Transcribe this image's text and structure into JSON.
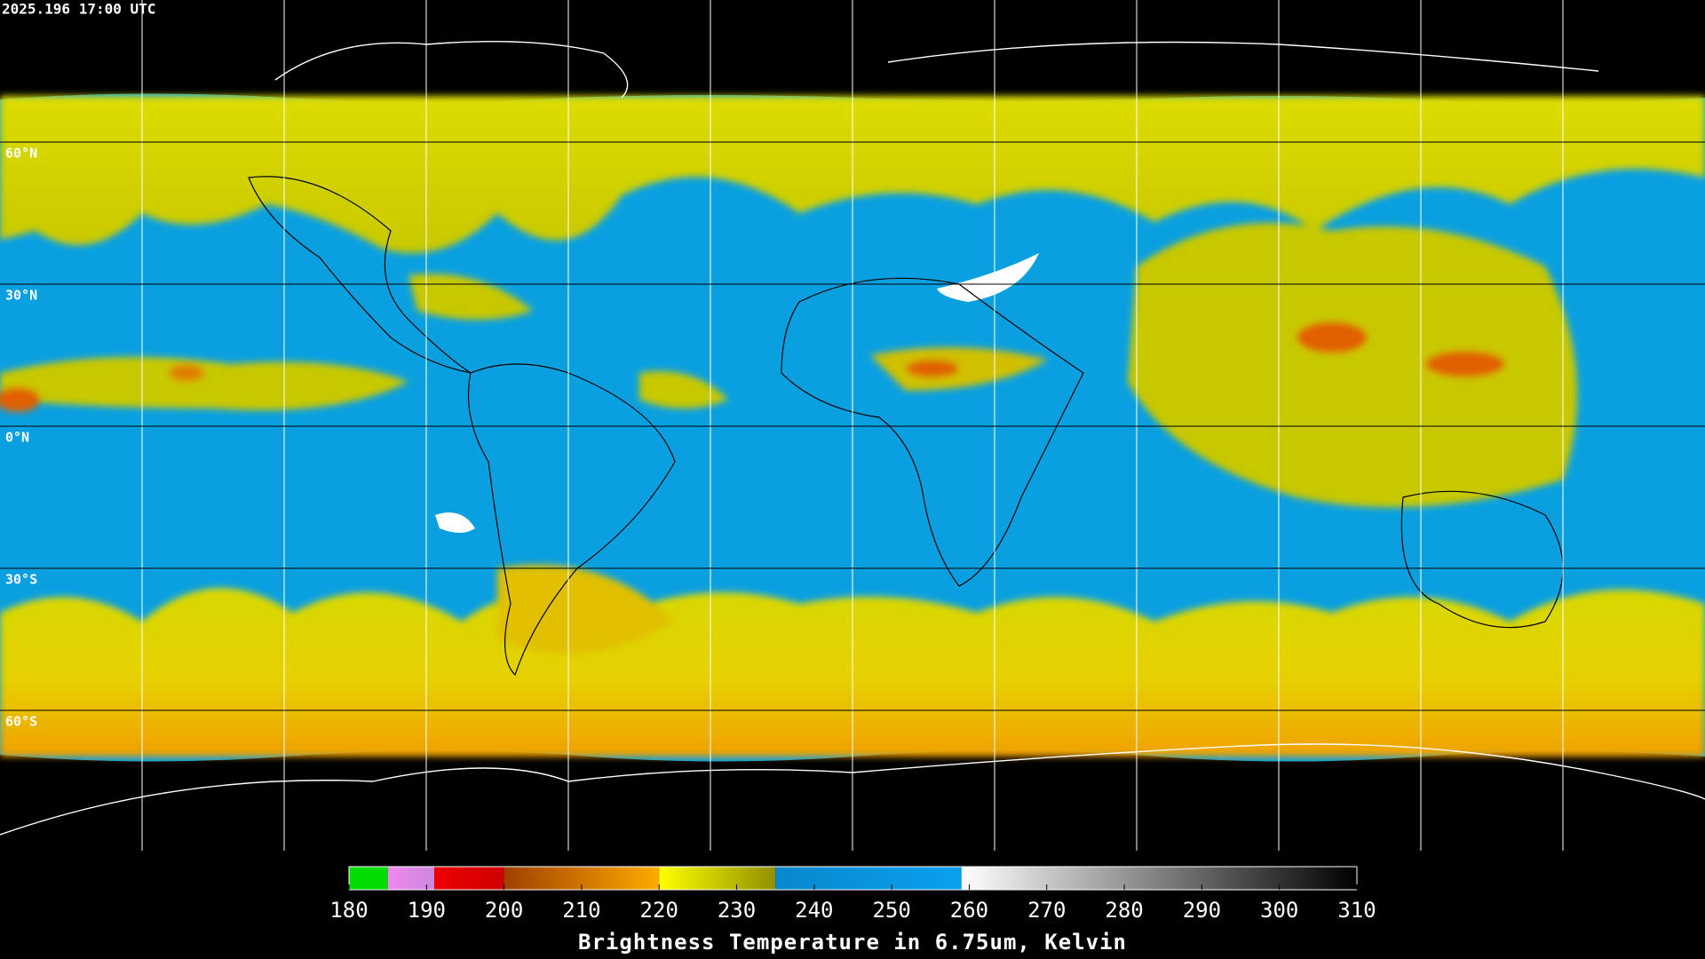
{
  "timestamp": "2025.196 17:00 UTC",
  "map": {
    "ylim": [
      -90,
      90
    ],
    "latitude_ticks": [
      {
        "value": 60,
        "label": "60°N"
      },
      {
        "value": 30,
        "label": "30°N"
      },
      {
        "value": 0,
        "label": "0°N"
      },
      {
        "value": -30,
        "label": "30°S"
      },
      {
        "value": -60,
        "label": "60°S"
      }
    ]
  },
  "colorbar": {
    "title": "Brightness Temperature in 6.75um, Kelvin",
    "lim": [
      180,
      310
    ],
    "ticks": [
      180,
      190,
      200,
      210,
      220,
      230,
      240,
      250,
      260,
      270,
      280,
      290,
      300,
      310
    ],
    "segments": [
      {
        "from": 180,
        "to": 185,
        "colors": [
          "#00dd00",
          "#00dd00"
        ]
      },
      {
        "from": 185,
        "to": 191,
        "colors": [
          "#ee88ee",
          "#cc88dd"
        ]
      },
      {
        "from": 191,
        "to": 200,
        "colors": [
          "#ee0000",
          "#cc0000"
        ]
      },
      {
        "from": 200,
        "to": 220,
        "colors": [
          "#a04000",
          "#ffaa00"
        ]
      },
      {
        "from": 220,
        "to": 235,
        "colors": [
          "#ffff00",
          "#909000"
        ]
      },
      {
        "from": 235,
        "to": 259,
        "colors": [
          "#0888cc",
          "#0aa0ee"
        ]
      },
      {
        "from": 259,
        "to": 310,
        "colors": [
          "#ffffff",
          "#000000"
        ]
      }
    ]
  }
}
